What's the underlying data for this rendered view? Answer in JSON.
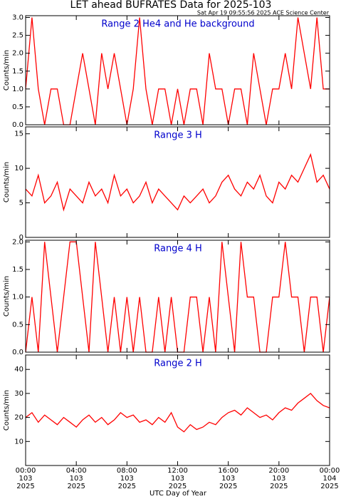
{
  "title": "LET ahead BUFRATES Data for 2025-103",
  "subtitle": "Sat Apr 19 09:55:56 2025 ACE Science Center",
  "x_axis": {
    "label": "UTC Day of Year",
    "xlim": [
      0,
      24
    ],
    "xticks": [
      {
        "value": 0,
        "label": "00:00"
      },
      {
        "value": 4,
        "label": "04:00"
      },
      {
        "value": 8,
        "label": "08:00"
      },
      {
        "value": 12,
        "label": "12:00"
      },
      {
        "value": 16,
        "label": "16:00"
      },
      {
        "value": 20,
        "label": "20:00"
      },
      {
        "value": 24,
        "label": "00:00"
      }
    ],
    "xtick_days": [
      "103",
      "103",
      "103",
      "103",
      "103",
      "103",
      "104"
    ],
    "xtick_years": [
      "2025",
      "2025",
      "2025",
      "2025",
      "2025",
      "2025",
      "2025"
    ]
  },
  "chart_data": [
    {
      "type": "line",
      "title": "Range 2 He4 and He background",
      "ylabel": "Counts/min",
      "x": [
        0,
        0.5,
        1,
        1.5,
        2,
        2.5,
        3,
        3.5,
        4,
        4.5,
        5,
        5.5,
        6,
        6.5,
        7,
        7.5,
        8,
        8.5,
        9,
        9.5,
        10,
        10.5,
        11,
        11.5,
        12,
        12.5,
        13,
        13.5,
        14,
        14.5,
        15,
        15.5,
        16,
        16.5,
        17,
        17.5,
        18,
        18.5,
        19,
        19.5,
        20,
        20.5,
        21,
        21.5,
        22,
        22.5,
        23,
        23.5,
        24
      ],
      "series": [
        {
          "color": "#ff0000",
          "values": [
            1,
            3,
            1,
            0,
            1,
            1,
            0,
            0,
            1,
            2,
            1,
            0,
            2,
            1,
            2,
            1,
            0,
            1,
            3,
            1,
            0,
            1,
            1,
            0,
            1,
            0,
            1,
            1,
            0,
            2,
            1,
            1,
            0,
            1,
            1,
            0,
            2,
            1,
            0,
            1,
            1,
            2,
            1,
            3,
            2,
            1,
            3,
            1,
            1
          ]
        }
      ],
      "ylim": [
        0,
        3.05
      ],
      "yticks": [
        {
          "value": 0,
          "label": "0.0"
        },
        {
          "value": 0.5,
          "label": "0.5"
        },
        {
          "value": 1,
          "label": "1.0"
        },
        {
          "value": 1.5,
          "label": "1.5"
        },
        {
          "value": 2,
          "label": "2.0"
        },
        {
          "value": 2.5,
          "label": "2.5"
        },
        {
          "value": 3,
          "label": "3.0"
        }
      ]
    },
    {
      "type": "line",
      "title": "Range 3 H",
      "ylabel": "Counts/min",
      "x": [
        0,
        0.5,
        1,
        1.5,
        2,
        2.5,
        3,
        3.5,
        4,
        4.5,
        5,
        5.5,
        6,
        6.5,
        7,
        7.5,
        8,
        8.5,
        9,
        9.5,
        10,
        10.5,
        11,
        11.5,
        12,
        12.5,
        13,
        13.5,
        14,
        14.5,
        15,
        15.5,
        16,
        16.5,
        17,
        17.5,
        18,
        18.5,
        19,
        19.5,
        20,
        20.5,
        21,
        21.5,
        22,
        22.5,
        23,
        23.5,
        24
      ],
      "series": [
        {
          "color": "#ff0000",
          "values": [
            7,
            6,
            9,
            5,
            6,
            8,
            4,
            7,
            6,
            5,
            8,
            6,
            7,
            5,
            9,
            6,
            7,
            5,
            6,
            8,
            5,
            7,
            6,
            5,
            4,
            6,
            5,
            6,
            7,
            5,
            6,
            8,
            9,
            7,
            6,
            8,
            7,
            9,
            6,
            5,
            8,
            7,
            9,
            8,
            10,
            12,
            8,
            9,
            7
          ]
        }
      ],
      "ylim": [
        0,
        16
      ],
      "yticks": [
        0,
        5,
        10,
        15
      ]
    },
    {
      "type": "line",
      "title": "Range 4 H",
      "ylabel": "Counts/min",
      "x": [
        0,
        0.5,
        1,
        1.5,
        2,
        2.5,
        3,
        3.5,
        4,
        4.5,
        5,
        5.5,
        6,
        6.5,
        7,
        7.5,
        8,
        8.5,
        9,
        9.5,
        10,
        10.5,
        11,
        11.5,
        12,
        12.5,
        13,
        13.5,
        14,
        14.5,
        15,
        15.5,
        16,
        16.5,
        17,
        17.5,
        18,
        18.5,
        19,
        19.5,
        20,
        20.5,
        21,
        21.5,
        22,
        22.5,
        23,
        23.5,
        24
      ],
      "series": [
        {
          "color": "#ff0000",
          "values": [
            0,
            1,
            0,
            2,
            1,
            0,
            1,
            2,
            2,
            1,
            0,
            2,
            1,
            0,
            1,
            0,
            1,
            0,
            1,
            0,
            0,
            1,
            0,
            1,
            0,
            0,
            1,
            1,
            0,
            1,
            0,
            2,
            1,
            0,
            2,
            1,
            1,
            0,
            0,
            1,
            1,
            2,
            1,
            1,
            0,
            1,
            1,
            0,
            1
          ]
        }
      ],
      "ylim": [
        0,
        2.03
      ],
      "yticks": [
        {
          "value": 0,
          "label": "0.0"
        },
        {
          "value": 0.5,
          "label": "0.5"
        },
        {
          "value": 1,
          "label": "1.0"
        },
        {
          "value": 1.5,
          "label": "1.5"
        },
        {
          "value": 2,
          "label": "2.0"
        }
      ]
    },
    {
      "type": "line",
      "title": "Range 2 H",
      "ylabel": "Counts/min",
      "x": [
        0,
        0.5,
        1,
        1.5,
        2,
        2.5,
        3,
        3.5,
        4,
        4.5,
        5,
        5.5,
        6,
        6.5,
        7,
        7.5,
        8,
        8.5,
        9,
        9.5,
        10,
        10.5,
        11,
        11.5,
        12,
        12.5,
        13,
        13.5,
        14,
        14.5,
        15,
        15.5,
        16,
        16.5,
        17,
        17.5,
        18,
        18.5,
        19,
        19.5,
        20,
        20.5,
        21,
        21.5,
        22,
        22.5,
        23,
        23.5,
        24
      ],
      "series": [
        {
          "color": "#ff0000",
          "values": [
            20,
            22,
            18,
            21,
            19,
            17,
            20,
            18,
            16,
            19,
            21,
            18,
            20,
            17,
            19,
            22,
            20,
            21,
            18,
            19,
            17,
            20,
            18,
            22,
            16,
            14,
            17,
            15,
            16,
            18,
            17,
            20,
            22,
            23,
            21,
            24,
            22,
            20,
            21,
            19,
            22,
            24,
            23,
            26,
            28,
            30,
            27,
            25,
            24
          ]
        }
      ],
      "ylim": [
        0,
        46
      ],
      "yticks": [
        10,
        20,
        30,
        40
      ]
    }
  ]
}
